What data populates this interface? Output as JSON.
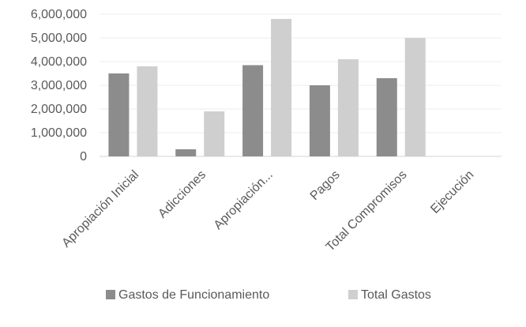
{
  "chart_data": {
    "type": "bar",
    "title": "",
    "xlabel": "",
    "ylabel": "",
    "categories": [
      "Apropiación Inicial",
      "Adicciones",
      "Apropiación...",
      "Pagos",
      "Total Compromisos",
      "Ejecución"
    ],
    "series": [
      {
        "name": "Gastos de Funcionamiento",
        "color": "#8c8c8c",
        "values": [
          3500000,
          300000,
          3850000,
          3000000,
          3300000,
          0
        ]
      },
      {
        "name": "Total Gastos",
        "color": "#cfcfcf",
        "values": [
          3800000,
          1900000,
          5800000,
          4100000,
          5000000,
          0
        ]
      }
    ],
    "ylim": [
      0,
      6000000
    ],
    "yticks": [
      0,
      1000000,
      2000000,
      3000000,
      4000000,
      5000000,
      6000000
    ],
    "ytick_labels": [
      "0",
      "1,000,000",
      "2,000,000",
      "3,000,000",
      "4,000,000",
      "5,000,000",
      "6,000,000"
    ],
    "grid": true,
    "legend_position": "bottom"
  }
}
